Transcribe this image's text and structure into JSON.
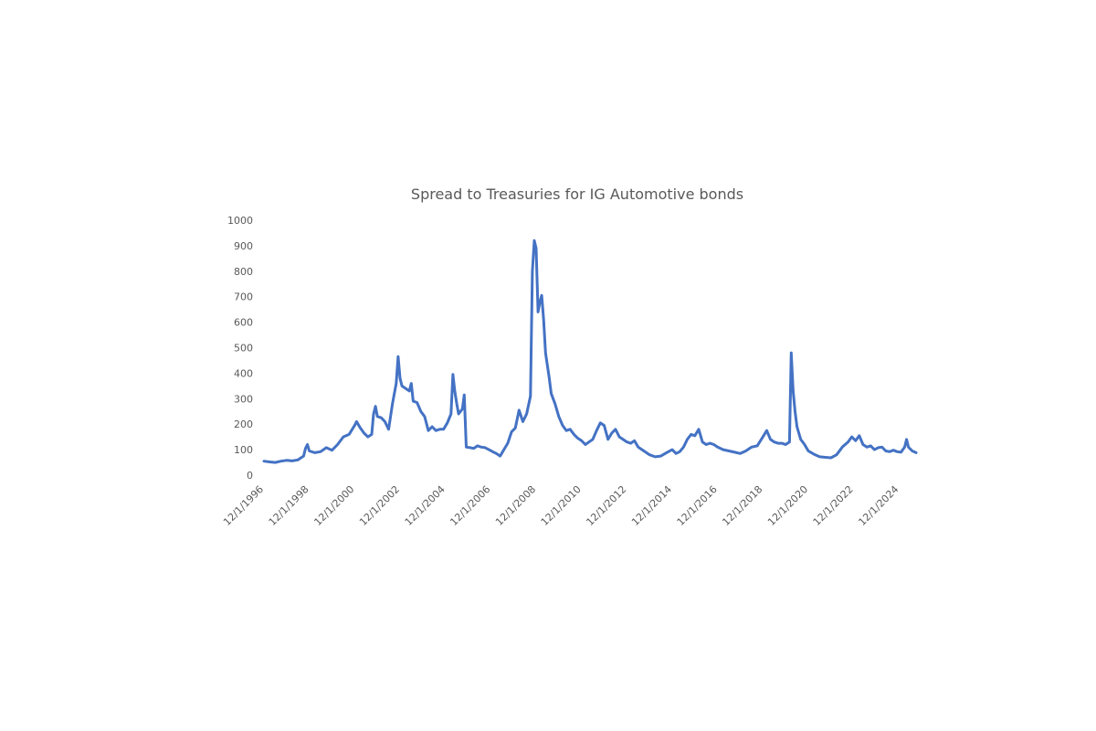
{
  "chart_data": {
    "type": "line",
    "title": "Spread to Treasuries for IG Automotive bonds",
    "xlabel": "",
    "ylabel": "",
    "ylim": [
      0,
      1000
    ],
    "y_ticks": [
      "0",
      "100",
      "200",
      "300",
      "400",
      "500",
      "600",
      "700",
      "800",
      "900",
      "1000"
    ],
    "x_tick_labels": [
      "12/1/1996",
      "12/1/1998",
      "12/1/2000",
      "12/1/2002",
      "12/1/2004",
      "12/1/2006",
      "12/1/2008",
      "12/1/2010",
      "12/1/2012",
      "12/1/2014",
      "12/1/2016",
      "12/1/2018",
      "12/1/2020",
      "12/1/2022",
      "12/1/2024"
    ],
    "x_range": [
      "1996-12-01",
      "2025-09-01"
    ],
    "grid": false,
    "legend": "none",
    "line_color": "#4472C4",
    "series": [
      {
        "points": [
          [
            "1996-12-01",
            55
          ],
          [
            "1997-03-01",
            52
          ],
          [
            "1997-06-01",
            50
          ],
          [
            "1997-09-01",
            55
          ],
          [
            "1997-12-01",
            58
          ],
          [
            "1998-03-01",
            56
          ],
          [
            "1998-06-01",
            60
          ],
          [
            "1998-09-01",
            75
          ],
          [
            "1998-10-01",
            105
          ],
          [
            "1998-11-01",
            120
          ],
          [
            "1998-12-01",
            95
          ],
          [
            "1999-03-01",
            88
          ],
          [
            "1999-06-01",
            92
          ],
          [
            "1999-09-01",
            108
          ],
          [
            "1999-12-01",
            98
          ],
          [
            "2000-03-01",
            120
          ],
          [
            "2000-06-01",
            150
          ],
          [
            "2000-09-01",
            160
          ],
          [
            "2000-12-01",
            195
          ],
          [
            "2001-01-01",
            210
          ],
          [
            "2001-03-01",
            185
          ],
          [
            "2001-05-01",
            165
          ],
          [
            "2001-07-01",
            150
          ],
          [
            "2001-09-01",
            160
          ],
          [
            "2001-10-01",
            240
          ],
          [
            "2001-11-01",
            270
          ],
          [
            "2001-12-01",
            230
          ],
          [
            "2002-02-01",
            225
          ],
          [
            "2002-04-01",
            210
          ],
          [
            "2002-06-01",
            180
          ],
          [
            "2002-08-01",
            280
          ],
          [
            "2002-10-01",
            360
          ],
          [
            "2002-11-01",
            465
          ],
          [
            "2002-12-01",
            380
          ],
          [
            "2003-01-01",
            350
          ],
          [
            "2003-03-01",
            340
          ],
          [
            "2003-05-01",
            330
          ],
          [
            "2003-06-01",
            360
          ],
          [
            "2003-07-01",
            290
          ],
          [
            "2003-09-01",
            285
          ],
          [
            "2003-11-01",
            250
          ],
          [
            "2004-01-01",
            230
          ],
          [
            "2004-03-01",
            175
          ],
          [
            "2004-05-01",
            190
          ],
          [
            "2004-07-01",
            175
          ],
          [
            "2004-09-01",
            180
          ],
          [
            "2004-11-01",
            180
          ],
          [
            "2005-01-01",
            205
          ],
          [
            "2005-03-01",
            240
          ],
          [
            "2005-04-01",
            395
          ],
          [
            "2005-05-01",
            330
          ],
          [
            "2005-06-01",
            280
          ],
          [
            "2005-07-01",
            240
          ],
          [
            "2005-09-01",
            260
          ],
          [
            "2005-10-01",
            315
          ],
          [
            "2005-11-01",
            110
          ],
          [
            "2006-01-01",
            108
          ],
          [
            "2006-03-01",
            105
          ],
          [
            "2006-05-01",
            115
          ],
          [
            "2006-07-01",
            110
          ],
          [
            "2006-09-01",
            108
          ],
          [
            "2006-11-01",
            100
          ],
          [
            "2007-01-01",
            92
          ],
          [
            "2007-03-01",
            85
          ],
          [
            "2007-05-01",
            75
          ],
          [
            "2007-07-01",
            100
          ],
          [
            "2007-09-01",
            125
          ],
          [
            "2007-11-01",
            170
          ],
          [
            "2008-01-01",
            185
          ],
          [
            "2008-03-01",
            255
          ],
          [
            "2008-05-01",
            210
          ],
          [
            "2008-07-01",
            240
          ],
          [
            "2008-09-01",
            310
          ],
          [
            "2008-10-01",
            800
          ],
          [
            "2008-11-01",
            920
          ],
          [
            "2008-12-01",
            890
          ],
          [
            "2009-01-01",
            640
          ],
          [
            "2009-02-01",
            680
          ],
          [
            "2009-03-01",
            705
          ],
          [
            "2009-04-01",
            610
          ],
          [
            "2009-05-01",
            480
          ],
          [
            "2009-07-01",
            380
          ],
          [
            "2009-08-01",
            320
          ],
          [
            "2009-10-01",
            280
          ],
          [
            "2009-12-01",
            230
          ],
          [
            "2010-02-01",
            195
          ],
          [
            "2010-04-01",
            175
          ],
          [
            "2010-06-01",
            180
          ],
          [
            "2010-08-01",
            160
          ],
          [
            "2010-10-01",
            145
          ],
          [
            "2010-12-01",
            135
          ],
          [
            "2011-02-01",
            120
          ],
          [
            "2011-04-01",
            130
          ],
          [
            "2011-06-01",
            140
          ],
          [
            "2011-08-01",
            175
          ],
          [
            "2011-10-01",
            205
          ],
          [
            "2011-12-01",
            195
          ],
          [
            "2012-02-01",
            140
          ],
          [
            "2012-04-01",
            165
          ],
          [
            "2012-06-01",
            180
          ],
          [
            "2012-08-01",
            150
          ],
          [
            "2012-10-01",
            140
          ],
          [
            "2012-12-01",
            130
          ],
          [
            "2013-02-01",
            125
          ],
          [
            "2013-04-01",
            135
          ],
          [
            "2013-06-01",
            110
          ],
          [
            "2013-08-01",
            100
          ],
          [
            "2013-10-01",
            90
          ],
          [
            "2013-12-01",
            80
          ],
          [
            "2014-03-01",
            72
          ],
          [
            "2014-06-01",
            75
          ],
          [
            "2014-09-01",
            88
          ],
          [
            "2014-12-01",
            100
          ],
          [
            "2015-02-01",
            85
          ],
          [
            "2015-04-01",
            92
          ],
          [
            "2015-06-01",
            110
          ],
          [
            "2015-08-01",
            140
          ],
          [
            "2015-10-01",
            160
          ],
          [
            "2015-12-01",
            155
          ],
          [
            "2016-02-01",
            180
          ],
          [
            "2016-04-01",
            130
          ],
          [
            "2016-06-01",
            120
          ],
          [
            "2016-08-01",
            125
          ],
          [
            "2016-10-01",
            120
          ],
          [
            "2016-12-01",
            110
          ],
          [
            "2017-03-01",
            100
          ],
          [
            "2017-06-01",
            95
          ],
          [
            "2017-09-01",
            90
          ],
          [
            "2017-12-01",
            85
          ],
          [
            "2018-03-01",
            95
          ],
          [
            "2018-06-01",
            110
          ],
          [
            "2018-09-01",
            115
          ],
          [
            "2018-12-01",
            150
          ],
          [
            "2019-02-01",
            175
          ],
          [
            "2019-04-01",
            140
          ],
          [
            "2019-06-01",
            130
          ],
          [
            "2019-08-01",
            125
          ],
          [
            "2019-10-01",
            125
          ],
          [
            "2019-12-01",
            120
          ],
          [
            "2020-02-01",
            130
          ],
          [
            "2020-03-01",
            480
          ],
          [
            "2020-04-01",
            330
          ],
          [
            "2020-05-01",
            250
          ],
          [
            "2020-06-01",
            190
          ],
          [
            "2020-08-01",
            140
          ],
          [
            "2020-10-01",
            120
          ],
          [
            "2020-12-01",
            95
          ],
          [
            "2021-03-01",
            82
          ],
          [
            "2021-06-01",
            72
          ],
          [
            "2021-09-01",
            70
          ],
          [
            "2021-12-01",
            68
          ],
          [
            "2022-03-01",
            80
          ],
          [
            "2022-06-01",
            110
          ],
          [
            "2022-09-01",
            130
          ],
          [
            "2022-11-01",
            150
          ],
          [
            "2023-01-01",
            135
          ],
          [
            "2023-03-01",
            155
          ],
          [
            "2023-05-01",
            120
          ],
          [
            "2023-07-01",
            110
          ],
          [
            "2023-09-01",
            115
          ],
          [
            "2023-11-01",
            100
          ],
          [
            "2024-01-01",
            108
          ],
          [
            "2024-03-01",
            110
          ],
          [
            "2024-05-01",
            95
          ],
          [
            "2024-07-01",
            92
          ],
          [
            "2024-09-01",
            98
          ],
          [
            "2024-11-01",
            92
          ],
          [
            "2025-01-01",
            90
          ],
          [
            "2025-03-01",
            110
          ],
          [
            "2025-04-01",
            140
          ],
          [
            "2025-05-01",
            110
          ],
          [
            "2025-07-01",
            95
          ],
          [
            "2025-09-01",
            88
          ]
        ]
      }
    ]
  }
}
